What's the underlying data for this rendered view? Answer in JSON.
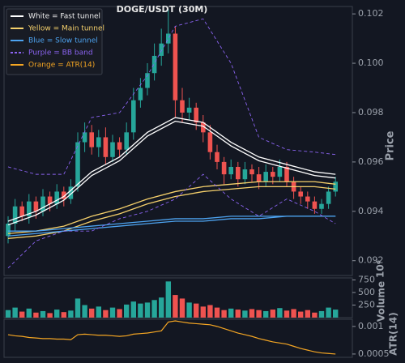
{
  "chart_data": [
    {
      "type": "candlestick",
      "title": "DOGE/USDT (30M)",
      "ylabel": "Price",
      "ylim": [
        0.0914,
        0.1023
      ],
      "yticks": [
        0.092,
        0.094,
        0.096,
        0.098,
        {
          "value": 0.1,
          "label": "0.100"
        },
        0.102
      ],
      "up_color": "#26a69a",
      "down_color": "#ef5350",
      "open": [
        0.093,
        0.0935,
        0.0942,
        0.0938,
        0.0944,
        0.094,
        0.0946,
        0.0943,
        0.0948,
        0.0945,
        0.095,
        0.0968,
        0.0972,
        0.0966,
        0.097,
        0.0962,
        0.0968,
        0.0965,
        0.0972,
        0.0985,
        0.099,
        0.0996,
        0.1003,
        0.1008,
        0.1012,
        0.0985,
        0.098,
        0.0982,
        0.0976,
        0.0972,
        0.0964,
        0.096,
        0.0955,
        0.0958,
        0.0953,
        0.0957,
        0.0955,
        0.0952,
        0.0956,
        0.0954,
        0.0958,
        0.0952,
        0.0948,
        0.0946,
        0.0944,
        0.0941,
        0.0943,
        0.0948
      ],
      "high": [
        0.0938,
        0.0945,
        0.0944,
        0.0947,
        0.0946,
        0.0949,
        0.0948,
        0.0951,
        0.095,
        0.0953,
        0.0972,
        0.0976,
        0.0975,
        0.0973,
        0.0974,
        0.0971,
        0.097,
        0.0976,
        0.099,
        0.0994,
        0.1,
        0.1008,
        0.1014,
        0.1022,
        0.1015,
        0.099,
        0.0986,
        0.0984,
        0.0979,
        0.0975,
        0.0967,
        0.0962,
        0.0961,
        0.096,
        0.096,
        0.0959,
        0.0958,
        0.0959,
        0.0958,
        0.0961,
        0.096,
        0.0954,
        0.095,
        0.0948,
        0.0946,
        0.0945,
        0.095,
        0.0954
      ],
      "low": [
        0.0927,
        0.0932,
        0.0936,
        0.0935,
        0.0937,
        0.0938,
        0.094,
        0.0941,
        0.0942,
        0.0943,
        0.0948,
        0.0964,
        0.0963,
        0.0962,
        0.0959,
        0.096,
        0.0962,
        0.0963,
        0.0969,
        0.0982,
        0.0987,
        0.0993,
        0.0999,
        0.1004,
        0.0978,
        0.0976,
        0.0977,
        0.0973,
        0.0968,
        0.0961,
        0.0957,
        0.0951,
        0.0953,
        0.095,
        0.0951,
        0.0952,
        0.0949,
        0.095,
        0.0951,
        0.0952,
        0.095,
        0.0945,
        0.0943,
        0.0941,
        0.0939,
        0.0939,
        0.0941,
        0.0946
      ],
      "close": [
        0.0935,
        0.0942,
        0.0938,
        0.0944,
        0.094,
        0.0946,
        0.0943,
        0.0948,
        0.0945,
        0.095,
        0.0968,
        0.0972,
        0.0966,
        0.097,
        0.0962,
        0.0968,
        0.0965,
        0.0972,
        0.0985,
        0.099,
        0.0996,
        0.1003,
        0.1008,
        0.1012,
        0.0985,
        0.098,
        0.0982,
        0.0976,
        0.0972,
        0.0964,
        0.096,
        0.0955,
        0.0958,
        0.0953,
        0.0957,
        0.0955,
        0.0952,
        0.0956,
        0.0954,
        0.0958,
        0.0952,
        0.0948,
        0.0946,
        0.0944,
        0.0941,
        0.0943,
        0.0948,
        0.0952
      ],
      "line_x": [
        0,
        4,
        8,
        12,
        16,
        20,
        24,
        28,
        32,
        36,
        40,
        44,
        47
      ],
      "series": [
        {
          "name": "White = Fast tunnel",
          "color": "#ffffff",
          "style": "solid",
          "upper": [
            0.0936,
            0.094,
            0.0946,
            0.0956,
            0.0962,
            0.0972,
            0.0978,
            0.0976,
            0.0968,
            0.0962,
            0.0959,
            0.0956,
            0.0955
          ],
          "lower": [
            0.09345,
            0.09385,
            0.09445,
            0.09545,
            0.09605,
            0.09705,
            0.09765,
            0.09745,
            0.09665,
            0.09605,
            0.09575,
            0.09545,
            0.09535
          ]
        },
        {
          "name": "Yellow = Main tunnel",
          "color": "#f5d06b",
          "style": "solid",
          "upper": [
            0.0931,
            0.0932,
            0.0934,
            0.0938,
            0.0941,
            0.0945,
            0.0948,
            0.095,
            0.0951,
            0.0952,
            0.0952,
            0.0952,
            0.0951
          ],
          "lower": [
            0.0929,
            0.093,
            0.0932,
            0.0936,
            0.0939,
            0.0943,
            0.0946,
            0.0948,
            0.0949,
            0.095,
            0.095,
            0.095,
            0.0949
          ]
        },
        {
          "name": "Blue = Slow tunnel",
          "color": "#4da3f0",
          "style": "solid",
          "upper": [
            0.0932,
            0.0932,
            0.0933,
            0.0934,
            0.0935,
            0.0936,
            0.0937,
            0.0937,
            0.0938,
            0.0938,
            0.0938,
            0.0938,
            0.0938
          ],
          "lower": [
            0.093,
            0.0931,
            0.0932,
            0.0933,
            0.0934,
            0.0935,
            0.0936,
            0.0936,
            0.0937,
            0.0937,
            0.0938,
            0.0938,
            0.0938
          ]
        },
        {
          "name": "Purple = BB band",
          "color": "#8a63f0",
          "style": "dashed",
          "upper": [
            0.0958,
            0.0955,
            0.0955,
            0.0978,
            0.098,
            0.0995,
            0.1015,
            0.1018,
            0.1,
            0.097,
            0.0965,
            0.0964,
            0.0963
          ],
          "lower": [
            0.0917,
            0.0928,
            0.0932,
            0.0932,
            0.0937,
            0.094,
            0.0945,
            0.0955,
            0.0945,
            0.0938,
            0.0945,
            0.094,
            0.0935
          ]
        }
      ]
    },
    {
      "type": "bar",
      "ylabel": "Volume",
      "scale_label": "10⁶",
      "ylim": [
        0,
        790
      ],
      "yticks": [
        250,
        500,
        750
      ],
      "values": [
        150,
        200,
        120,
        180,
        100,
        130,
        90,
        160,
        110,
        140,
        380,
        250,
        180,
        220,
        150,
        200,
        170,
        260,
        320,
        280,
        300,
        350,
        400,
        720,
        450,
        380,
        300,
        280,
        220,
        250,
        200,
        150,
        180,
        160,
        140,
        170,
        150,
        130,
        160,
        190,
        140,
        170,
        120,
        150,
        100,
        130,
        200,
        160
      ]
    },
    {
      "type": "line",
      "ylabel": "ATR(14)",
      "ylim": [
        0.00044,
        0.00113
      ],
      "yticks": [
        0.0005,
        0.001
      ],
      "series": [
        {
          "name": "Orange = ATR(14)",
          "color": "#f5a623",
          "values": [
            0.00085,
            0.00083,
            0.00082,
            0.0008,
            0.00079,
            0.00078,
            0.00078,
            0.00077,
            0.00077,
            0.00076,
            0.00085,
            0.00086,
            0.00085,
            0.00084,
            0.00084,
            0.00083,
            0.00082,
            0.00083,
            0.00086,
            0.00087,
            0.00088,
            0.0009,
            0.00092,
            0.00108,
            0.0011,
            0.00108,
            0.00106,
            0.00105,
            0.00104,
            0.00103,
            0.001,
            0.00096,
            0.00092,
            0.00088,
            0.00085,
            0.00082,
            0.00078,
            0.00075,
            0.00072,
            0.0007,
            0.00068,
            0.00064,
            0.0006,
            0.00057,
            0.00054,
            0.00052,
            0.00051,
            0.0005
          ]
        }
      ]
    }
  ]
}
